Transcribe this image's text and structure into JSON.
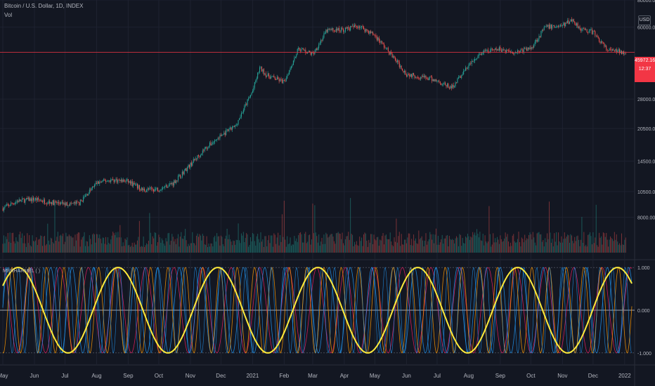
{
  "header": {
    "symbol": "Bitcoin / U.S. Dollar, 1D, INDEX",
    "volume_label": "Vol",
    "indicator_label": "MERHARMEL (  )",
    "currency_button": "USD",
    "last_price": "45972.16",
    "countdown": "12:37"
  },
  "colors": {
    "background": "#131722",
    "grid": "#1e2230",
    "candle_up": "#26a69a",
    "candle_down": "#ef5350",
    "price_line": "#f23645",
    "cycle_main": "#ffeb3b",
    "cycle_a": "#e91e63",
    "cycle_b": "#2196f3",
    "cycle_c": "#ff9800"
  },
  "chart_data": [
    {
      "type": "line",
      "subtype": "candlestick",
      "title": "Bitcoin / U.S. Dollar, 1D, INDEX",
      "x": [
        "2020-05-01",
        "2020-05-15",
        "2020-06-01",
        "2020-06-15",
        "2020-07-01",
        "2020-07-15",
        "2020-08-01",
        "2020-08-15",
        "2020-09-01",
        "2020-09-15",
        "2020-10-01",
        "2020-10-15",
        "2020-11-01",
        "2020-11-15",
        "2020-12-01",
        "2020-12-15",
        "2021-01-01",
        "2021-01-08",
        "2021-01-15",
        "2021-02-01",
        "2021-02-15",
        "2021-03-01",
        "2021-03-15",
        "2021-04-01",
        "2021-04-15",
        "2021-05-01",
        "2021-05-15",
        "2021-06-01",
        "2021-06-15",
        "2021-07-01",
        "2021-07-15",
        "2021-08-01",
        "2021-08-15",
        "2021-09-01",
        "2021-09-15",
        "2021-10-01",
        "2021-10-15",
        "2021-11-01",
        "2021-11-10",
        "2021-11-20",
        "2021-12-01",
        "2021-12-15",
        "2022-01-01"
      ],
      "values": [
        8800,
        9500,
        9700,
        9400,
        9200,
        9300,
        11500,
        11900,
        11700,
        10700,
        10800,
        11500,
        14000,
        16500,
        19000,
        21000,
        30500,
        39000,
        36000,
        33500,
        48000,
        45000,
        58000,
        58500,
        61000,
        55000,
        46000,
        36500,
        35500,
        34000,
        31500,
        40000,
        46000,
        47500,
        46000,
        48000,
        60000,
        61000,
        65000,
        58500,
        57000,
        47000,
        46000
      ],
      "last_price": 45972.16,
      "y_ticks": [
        8000,
        10500,
        14500,
        20500,
        28000,
        60000,
        80000
      ],
      "y_scale": "log",
      "ylim": [
        5500,
        80000
      ],
      "x_ticks": [
        "May",
        "Jun",
        "Jul",
        "Aug",
        "Sep",
        "Oct",
        "Nov",
        "Dec",
        "2021",
        "Feb",
        "Mar",
        "Apr",
        "May",
        "Jun",
        "Jul",
        "Aug",
        "Sep",
        "Oct",
        "Nov",
        "Dec",
        "2022"
      ]
    },
    {
      "type": "line",
      "title": "MERHARMEL (  )",
      "y_ticks": [
        1.0,
        0.0,
        -1.0
      ],
      "ylim": [
        -1.15,
        1.15
      ],
      "series": [
        {
          "period_days": 98,
          "phase_days": 15,
          "color": "#ffeb3b",
          "width": 2
        },
        {
          "period_days": 28,
          "phase_days": 0,
          "color": "#e91e63",
          "width": 0.8
        },
        {
          "period_days": 21,
          "phase_days": 5,
          "color": "#2196f3",
          "width": 0.8
        },
        {
          "period_days": 17,
          "phase_days": 9,
          "color": "#ff9800",
          "width": 0.8
        },
        {
          "period_days": 12.4,
          "phase_days": 3,
          "color": "#2196f3",
          "width": 0.6
        }
      ]
    }
  ]
}
